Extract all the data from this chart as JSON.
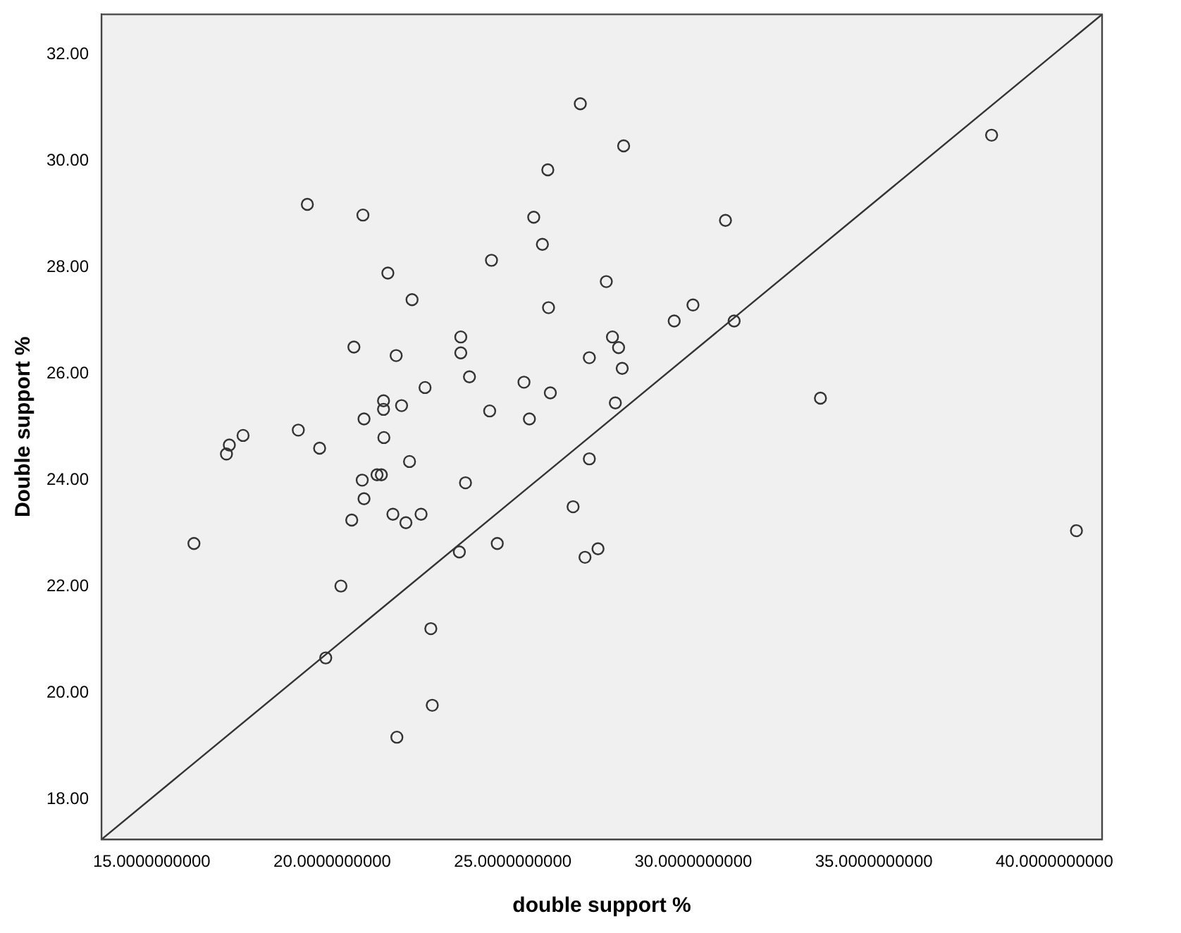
{
  "chart_data": {
    "type": "scatter",
    "xlabel": "double support %",
    "ylabel": "Double support %",
    "xlim": [
      13.61,
      41.32
    ],
    "ylim": [
      17.25,
      32.75
    ],
    "xticks": [
      {
        "value": 15,
        "label": "15.0000000000"
      },
      {
        "value": 20,
        "label": "20.0000000000"
      },
      {
        "value": 25,
        "label": "25.0000000000"
      },
      {
        "value": 30,
        "label": "30.0000000000"
      },
      {
        "value": 35,
        "label": "35.0000000000"
      },
      {
        "value": 40,
        "label": "40.0000000000"
      }
    ],
    "yticks": [
      {
        "value": 18,
        "label": "18.00"
      },
      {
        "value": 20,
        "label": "20.00"
      },
      {
        "value": 22,
        "label": "22.00"
      },
      {
        "value": 24,
        "label": "24.00"
      },
      {
        "value": 26,
        "label": "26.00"
      },
      {
        "value": 28,
        "label": "28.00"
      },
      {
        "value": 30,
        "label": "30.00"
      },
      {
        "value": 32,
        "label": "32.00"
      }
    ],
    "grid": false,
    "legend": false,
    "marker": "circle",
    "series": [
      {
        "type": "scatter",
        "color": "#333333",
        "x": [
          26.87,
          25.97,
          19.31,
          20.85,
          25.58,
          25.82,
          24.41,
          21.54,
          27.59,
          22.21,
          25.99,
          23.56,
          23.56,
          20.6,
          21.77,
          27.12,
          27.76,
          27.93,
          28.03,
          23.8,
          25.31,
          26.04,
          22.57,
          21.42,
          21.42,
          21.92,
          20.88,
          24.36,
          25.46,
          27.84,
          28.07,
          30.89,
          29.47,
          29.99,
          31.13,
          38.26,
          33.52,
          17.53,
          17.15,
          17.07,
          19.06,
          19.65,
          21.43,
          22.14,
          20.83,
          21.24,
          21.36,
          23.69,
          20.88,
          20.54,
          21.68,
          22.04,
          22.46,
          16.17,
          23.52,
          24.57,
          27.12,
          26.67,
          27.0,
          27.36,
          20.24,
          19.82,
          22.73,
          22.77,
          21.79,
          40.61
        ],
        "values": [
          31.07,
          29.83,
          29.18,
          28.98,
          28.94,
          28.43,
          28.13,
          27.89,
          27.73,
          27.39,
          27.24,
          26.69,
          26.39,
          26.5,
          26.34,
          26.3,
          26.69,
          26.49,
          26.1,
          25.94,
          25.84,
          25.64,
          25.74,
          25.49,
          25.33,
          25.4,
          25.15,
          25.3,
          25.15,
          25.45,
          30.28,
          28.88,
          26.99,
          27.29,
          26.99,
          30.48,
          25.54,
          24.84,
          24.66,
          24.49,
          24.94,
          24.6,
          24.8,
          24.35,
          24.0,
          24.1,
          24.1,
          23.95,
          23.65,
          23.25,
          23.36,
          23.2,
          23.36,
          22.81,
          22.65,
          22.81,
          24.4,
          23.5,
          22.55,
          22.71,
          22.01,
          20.66,
          21.21,
          19.77,
          19.17,
          23.05
        ]
      },
      {
        "type": "line",
        "color": "#333333",
        "marker": "none",
        "x": [
          13.61,
          41.32
        ],
        "values": [
          17.25,
          32.75
        ]
      }
    ]
  }
}
